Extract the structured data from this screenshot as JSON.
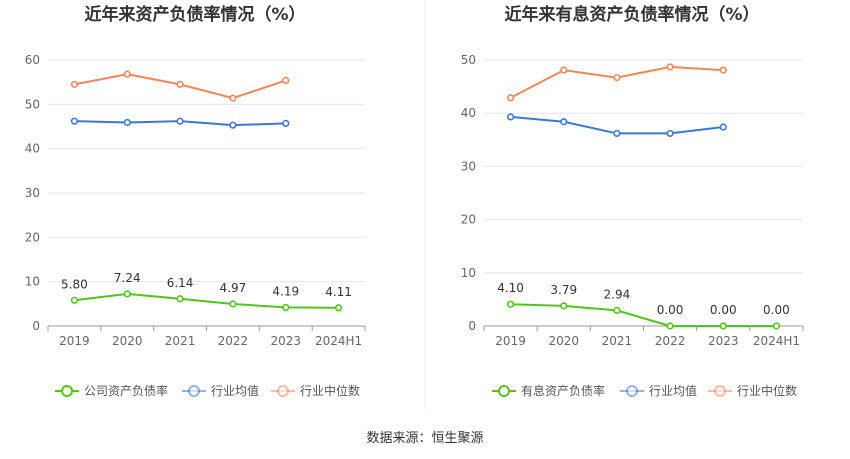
{
  "source_label": "数据来源：恒生聚源",
  "chart_data": [
    {
      "type": "line",
      "title": "近年来资产负债率情况（%）",
      "categories": [
        "2019",
        "2020",
        "2021",
        "2022",
        "2023",
        "2024H1"
      ],
      "ylim": [
        0,
        60
      ],
      "yticks": [
        0,
        10,
        20,
        30,
        40,
        50,
        60
      ],
      "grid": true,
      "legend_position": "bottom",
      "series": [
        {
          "name": "公司资产负债率",
          "color": "#52c41a",
          "values": [
            5.8,
            7.24,
            6.14,
            4.97,
            4.19,
            4.11
          ],
          "labels": [
            "5.80",
            "7.24",
            "6.14",
            "4.97",
            "4.19",
            "4.11"
          ]
        },
        {
          "name": "行业均值",
          "color": "#3a78d8",
          "values": [
            46.2,
            45.9,
            46.2,
            45.3,
            45.7,
            null
          ]
        },
        {
          "name": "行业中位数",
          "color": "#f0875a",
          "values": [
            54.5,
            56.8,
            54.5,
            51.4,
            55.4,
            null
          ]
        }
      ]
    },
    {
      "type": "line",
      "title": "近年来有息资产负债率情况（%）",
      "categories": [
        "2019",
        "2020",
        "2021",
        "2022",
        "2023",
        "2024H1"
      ],
      "ylim": [
        0,
        50
      ],
      "yticks": [
        0,
        10,
        20,
        30,
        40,
        50
      ],
      "grid": true,
      "legend_position": "bottom",
      "series": [
        {
          "name": "有息资产负债率",
          "color": "#52c41a",
          "values": [
            4.1,
            3.79,
            2.94,
            0.0,
            0.0,
            0.0
          ],
          "labels": [
            "4.10",
            "3.79",
            "2.94",
            "0.00",
            "0.00",
            "0.00"
          ]
        },
        {
          "name": "行业均值",
          "color": "#3a78d8",
          "values": [
            39.3,
            38.4,
            36.2,
            36.2,
            37.4,
            null
          ]
        },
        {
          "name": "行业中位数",
          "color": "#f0875a",
          "values": [
            42.9,
            48.1,
            46.7,
            48.7,
            48.1,
            null
          ]
        }
      ]
    }
  ]
}
